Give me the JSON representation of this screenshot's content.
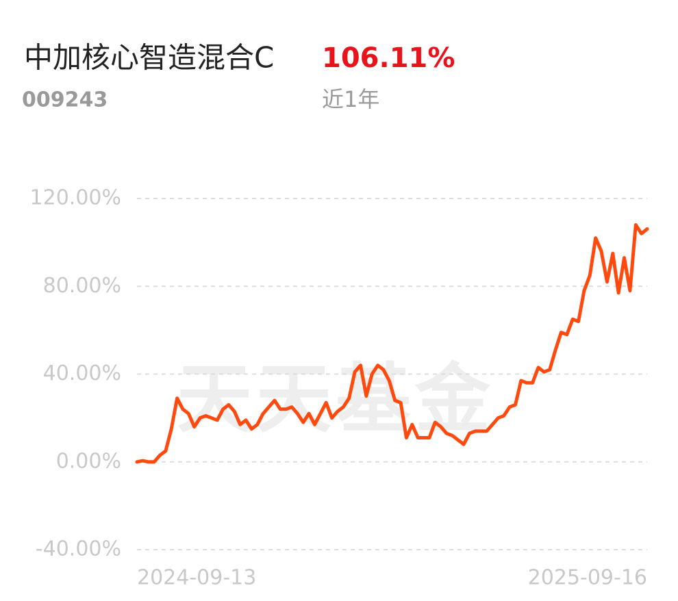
{
  "header": {
    "fund_name": "中加核心智造混合C",
    "return": "106.11%",
    "code": "009243",
    "period": "近1年"
  },
  "chart_data": {
    "type": "line",
    "watermark": "天天基金",
    "color": "#ff4a0f",
    "grid": true,
    "categories": [
      "2024-09-13",
      null,
      null,
      null,
      null,
      null,
      null,
      null,
      null,
      null,
      null,
      null,
      null,
      null,
      null,
      null,
      null,
      null,
      null,
      null,
      null,
      null,
      null,
      null,
      null,
      null,
      null,
      null,
      null,
      null,
      null,
      null,
      null,
      null,
      null,
      null,
      null,
      null,
      null,
      null,
      null,
      null,
      null,
      null,
      null,
      null,
      null,
      null,
      null,
      null,
      null,
      null,
      null,
      null,
      null,
      null,
      null,
      null,
      null,
      null,
      null,
      null,
      null,
      null,
      null,
      null,
      null,
      null,
      null,
      null,
      null,
      null,
      null,
      null,
      null,
      null,
      null,
      null,
      null,
      null,
      null,
      null,
      null,
      null,
      null,
      null,
      null,
      null,
      null,
      "2025-09-16"
    ],
    "values": [
      0,
      0.5,
      0,
      0,
      3,
      5,
      15,
      29,
      24,
      22,
      16,
      20,
      21,
      20,
      19,
      24,
      26,
      23,
      17,
      19,
      15,
      17,
      22,
      25,
      28,
      24,
      24,
      25,
      22,
      18,
      22,
      17,
      22,
      27,
      20,
      23,
      25,
      29,
      41,
      44,
      30,
      40,
      44,
      42,
      37,
      28,
      27,
      11,
      17,
      11,
      11,
      11,
      18,
      16,
      13,
      12,
      10,
      8,
      13,
      14,
      14,
      14,
      17,
      20,
      21,
      25,
      26,
      37,
      36,
      36,
      43,
      41,
      42,
      51,
      59,
      58,
      65,
      64,
      78,
      85,
      102,
      96,
      82,
      95,
      77,
      93,
      78,
      108,
      104,
      106.11
    ],
    "ylim": [
      -40,
      120
    ],
    "yticks": [
      {
        "value": -40,
        "label": "-40.00%"
      },
      {
        "value": 0,
        "label": "0.00%"
      },
      {
        "value": 40,
        "label": "40.00%"
      },
      {
        "value": 80,
        "label": "80.00%"
      },
      {
        "value": 120,
        "label": "120.00%"
      }
    ]
  }
}
